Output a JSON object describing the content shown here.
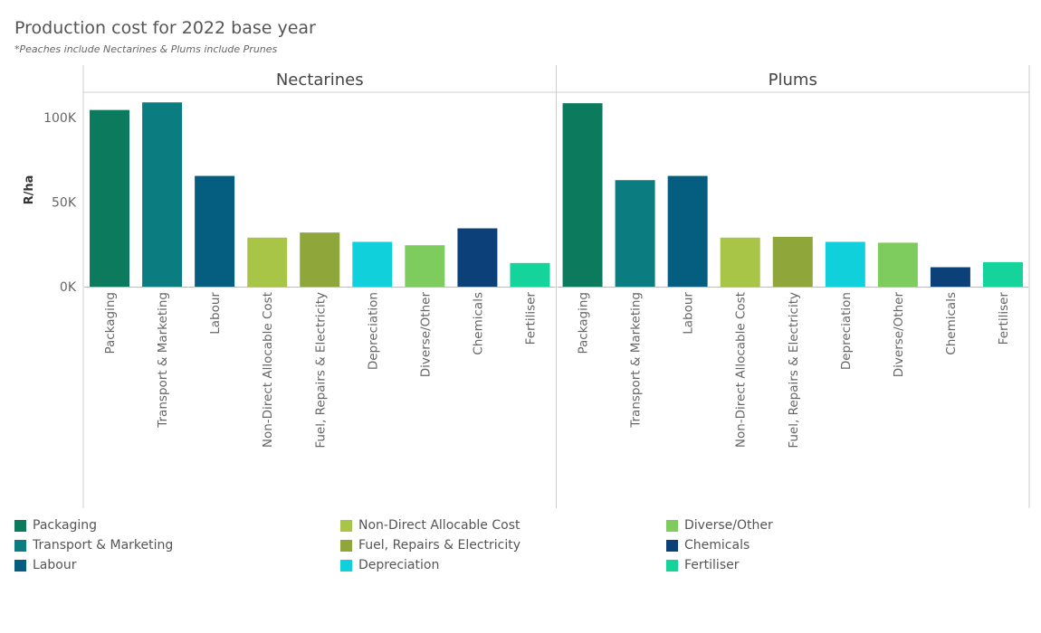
{
  "title": "Production cost for 2022 base year",
  "subtitle": "*Peaches include Nectarines & Plums include Prunes",
  "chart_data": {
    "type": "bar",
    "ylabel": "R/ha",
    "ylim": [
      0,
      115000
    ],
    "yticks": [
      0,
      50000,
      100000
    ],
    "ytick_labels": [
      "0K",
      "50K",
      "100K"
    ],
    "categories": [
      "Packaging",
      "Transport & Marketing",
      "Labour",
      "Non-Direct Allocable Cost",
      "Fuel, Repairs & Electricity",
      "Depreciation",
      "Diverse/Other",
      "Chemicals",
      "Fertiliser"
    ],
    "colors": [
      "#0b7a5d",
      "#0b7d80",
      "#055e80",
      "#a8c548",
      "#8ea63a",
      "#10d1db",
      "#7fcc5e",
      "#0b4079",
      "#14d49c"
    ],
    "panels": [
      {
        "name": "Nectarines",
        "values": [
          104500,
          109000,
          65500,
          29000,
          32000,
          26500,
          24500,
          34500,
          14000
        ]
      },
      {
        "name": "Plums",
        "values": [
          108500,
          63000,
          65500,
          29000,
          29500,
          26500,
          26000,
          11500,
          14500
        ]
      }
    ],
    "grid": false,
    "legend_position": "bottom"
  }
}
